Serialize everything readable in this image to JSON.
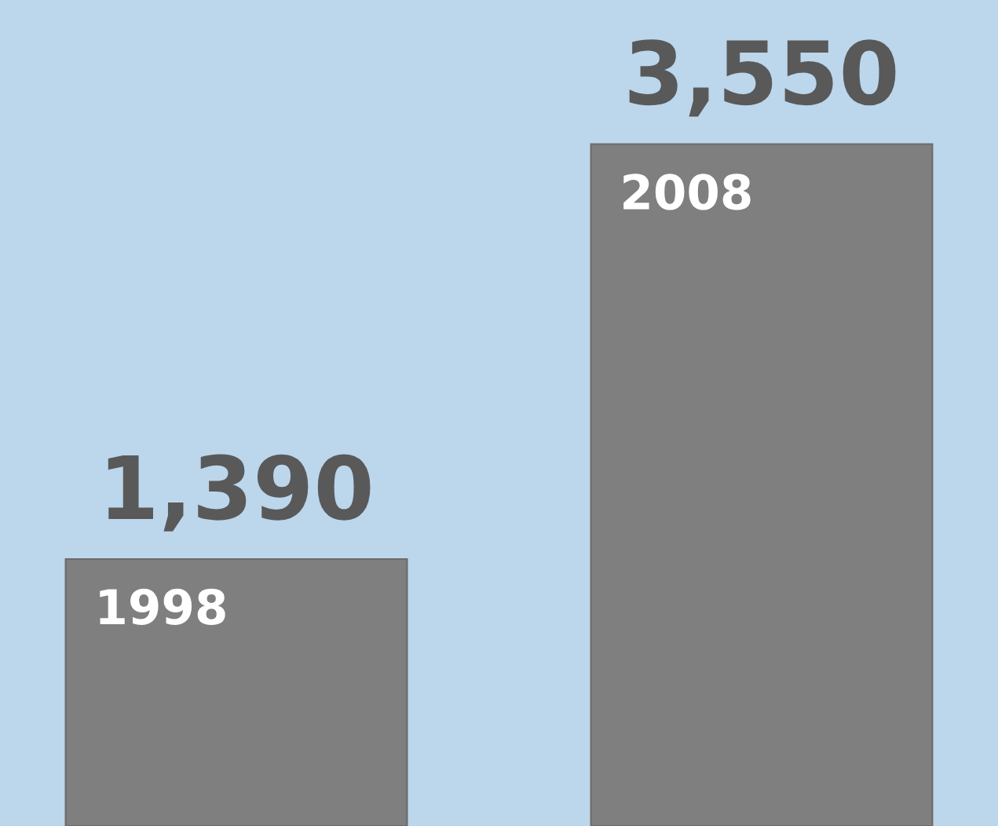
{
  "chart_data": {
    "type": "bar",
    "categories": [
      "1998",
      "2008"
    ],
    "values": [
      1390,
      3550
    ],
    "color": "#7f7f7f",
    "value_labels": [
      "1,390",
      "3,550"
    ],
    "ylim": [
      0,
      4300
    ]
  }
}
